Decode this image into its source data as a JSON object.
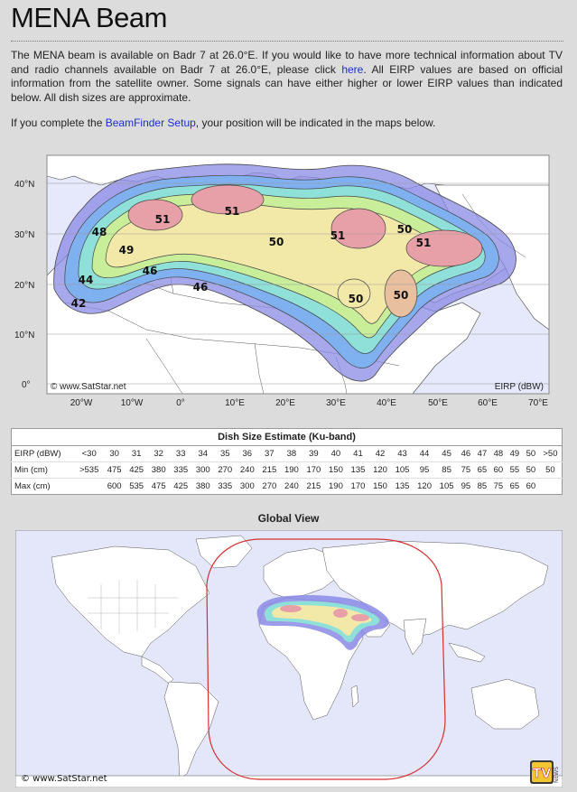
{
  "page": {
    "title": "MENA Beam",
    "intro_prefix": "The MENA beam is available on Badr 7 at 26.0°E. If you would like to have more technical information about TV and radio channels available on Badr 7 at 26.0°E, please click ",
    "intro_link": "here",
    "intro_suffix": ". All EIRP values are based on official information from the satellite owner. Some signals can have either higher or lower EIRP values than indicated below. All dish sizes are approximate.",
    "setup_prefix": "If you complete the ",
    "setup_link": "BeamFinder Setup",
    "setup_suffix": ", your position will be indicated in the maps below."
  },
  "beam_map": {
    "lat_labels": [
      "40°N",
      "30°N",
      "20°N",
      "10°N",
      "0°"
    ],
    "lon_labels": [
      "20°W",
      "10°W",
      "0°",
      "10°E",
      "20°E",
      "30°E",
      "40°E",
      "50°E",
      "60°E",
      "70°E"
    ],
    "credit": "© www.SatStar.net",
    "unit_label": "EIRP (dBW)",
    "contour_labels": [
      "51",
      "51",
      "48",
      "49",
      "50",
      "51",
      "50",
      "51",
      "46",
      "44",
      "42",
      "46",
      "50",
      "50"
    ],
    "colors": {
      "outer": "#8a8ae6",
      "ring2": "#7fb0f0",
      "ring3": "#8fe0d8",
      "ring4": "#c8ee9a",
      "core": "#f2e8a8",
      "peak": "#e8a0a8"
    }
  },
  "dish_table": {
    "caption": "Dish Size Estimate (Ku-band)",
    "rows": [
      {
        "label": "EIRP (dBW)",
        "cells": [
          "<30",
          "30",
          "31",
          "32",
          "33",
          "34",
          "35",
          "36",
          "37",
          "38",
          "39",
          "40",
          "41",
          "42",
          "43",
          "44",
          "45",
          "46",
          "47",
          "48",
          "49",
          "50",
          ">50"
        ]
      },
      {
        "label": "Min (cm)",
        "cells": [
          ">535",
          "475",
          "425",
          "380",
          "335",
          "300",
          "270",
          "240",
          "215",
          "190",
          "170",
          "150",
          "135",
          "120",
          "105",
          "95",
          "85",
          "75",
          "65",
          "60",
          "55",
          "50",
          "50"
        ]
      },
      {
        "label": "Max (cm)",
        "cells": [
          "",
          "600",
          "535",
          "475",
          "425",
          "380",
          "335",
          "300",
          "270",
          "240",
          "215",
          "190",
          "170",
          "150",
          "135",
          "120",
          "105",
          "95",
          "85",
          "75",
          "65",
          "60",
          ""
        ]
      }
    ]
  },
  "global_view": {
    "title": "Global View",
    "credit": "© www.SatStar.net",
    "logo_text": "TV",
    "logo_side": "NEWS",
    "colors": {
      "ocean": "#e4e6fa",
      "land": "#ffffff",
      "coverage": "#d43030"
    }
  }
}
